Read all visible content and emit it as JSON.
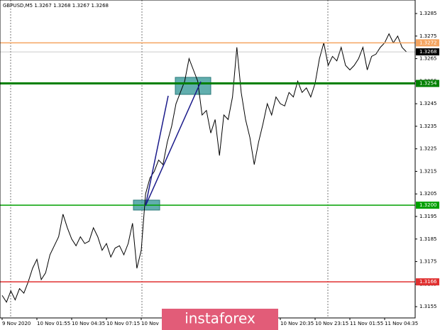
{
  "chart_data": {
    "type": "line",
    "title": "GBPUSD,M5  1.3267 1.3268 1.3267 1.3268",
    "watermark": "instaforex",
    "categories": [
      "9 Nov 2020",
      null,
      null,
      null,
      null,
      null,
      null,
      null,
      "10 Nov 01:55",
      null,
      null,
      null,
      null,
      null,
      null,
      null,
      "10 Nov 04:35",
      null,
      null,
      null,
      null,
      null,
      null,
      null,
      "10 Nov 07:15",
      null,
      null,
      null,
      null,
      null,
      null,
      null,
      "10 Nov",
      null,
      null,
      null,
      null,
      null,
      null,
      null,
      null,
      null,
      null,
      null,
      null,
      null,
      null,
      null,
      null,
      null,
      null,
      null,
      null,
      null,
      null,
      null,
      null,
      null,
      null,
      null,
      null,
      null,
      null,
      null,
      "10 Nov 20:35",
      null,
      null,
      null,
      null,
      null,
      null,
      null,
      "10 Nov 23:15",
      null,
      null,
      null,
      null,
      null,
      null,
      null,
      "11 Nov 01:55",
      null,
      null,
      null,
      null,
      null,
      null,
      null,
      "11 Nov 04:35",
      null,
      null,
      null,
      null,
      null
    ],
    "series": [
      {
        "name": "GBPUSD",
        "color": "#000000",
        "values": [
          1.316,
          1.3157,
          1.3162,
          1.3158,
          1.3163,
          1.3161,
          1.3166,
          1.3172,
          1.3176,
          1.3167,
          1.317,
          1.3178,
          1.3182,
          1.3186,
          1.3196,
          1.319,
          1.3185,
          1.3182,
          1.3186,
          1.3183,
          1.3184,
          1.319,
          1.3186,
          1.318,
          1.3183,
          1.3177,
          1.3181,
          1.3182,
          1.3178,
          1.3183,
          1.3192,
          1.3172,
          1.318,
          1.3205,
          1.3212,
          1.3215,
          1.322,
          1.3218,
          1.3228,
          1.3235,
          1.3245,
          1.325,
          1.3255,
          1.3265,
          1.326,
          1.3255,
          1.324,
          1.3242,
          1.3232,
          1.3238,
          1.3222,
          1.324,
          1.3238,
          1.3248,
          1.327,
          1.325,
          1.3238,
          1.323,
          1.3218,
          1.3228,
          1.3236,
          1.3245,
          1.324,
          1.3248,
          1.3245,
          1.3244,
          1.325,
          1.3248,
          1.3255,
          1.325,
          1.3252,
          1.3248,
          1.3254,
          1.3265,
          1.3272,
          1.3262,
          1.3266,
          1.3264,
          1.327,
          1.3262,
          1.326,
          1.3262,
          1.3265,
          1.327,
          1.326,
          1.3266,
          1.3267,
          1.327,
          1.3272,
          1.3276,
          1.3272,
          1.3275,
          1.327,
          1.3268
        ]
      }
    ],
    "ylim": [
      1.315,
      1.3291
    ],
    "yticks": [
      1.3285,
      1.3275,
      1.3265,
      1.3255,
      1.3245,
      1.3235,
      1.3225,
      1.3215,
      1.3205,
      1.3195,
      1.3185,
      1.3175,
      1.3165,
      1.3155
    ],
    "levels": [
      {
        "value": 1.3272,
        "color": "#f4a460"
      },
      {
        "value": 1.3268,
        "color": "#000000"
      },
      {
        "value": 1.3254,
        "color": "#008000"
      },
      {
        "value": 1.32,
        "label": "1.3200",
        "color": "#00a000"
      },
      {
        "value": 1.3166,
        "color": "#e03030"
      }
    ],
    "grid": false
  }
}
